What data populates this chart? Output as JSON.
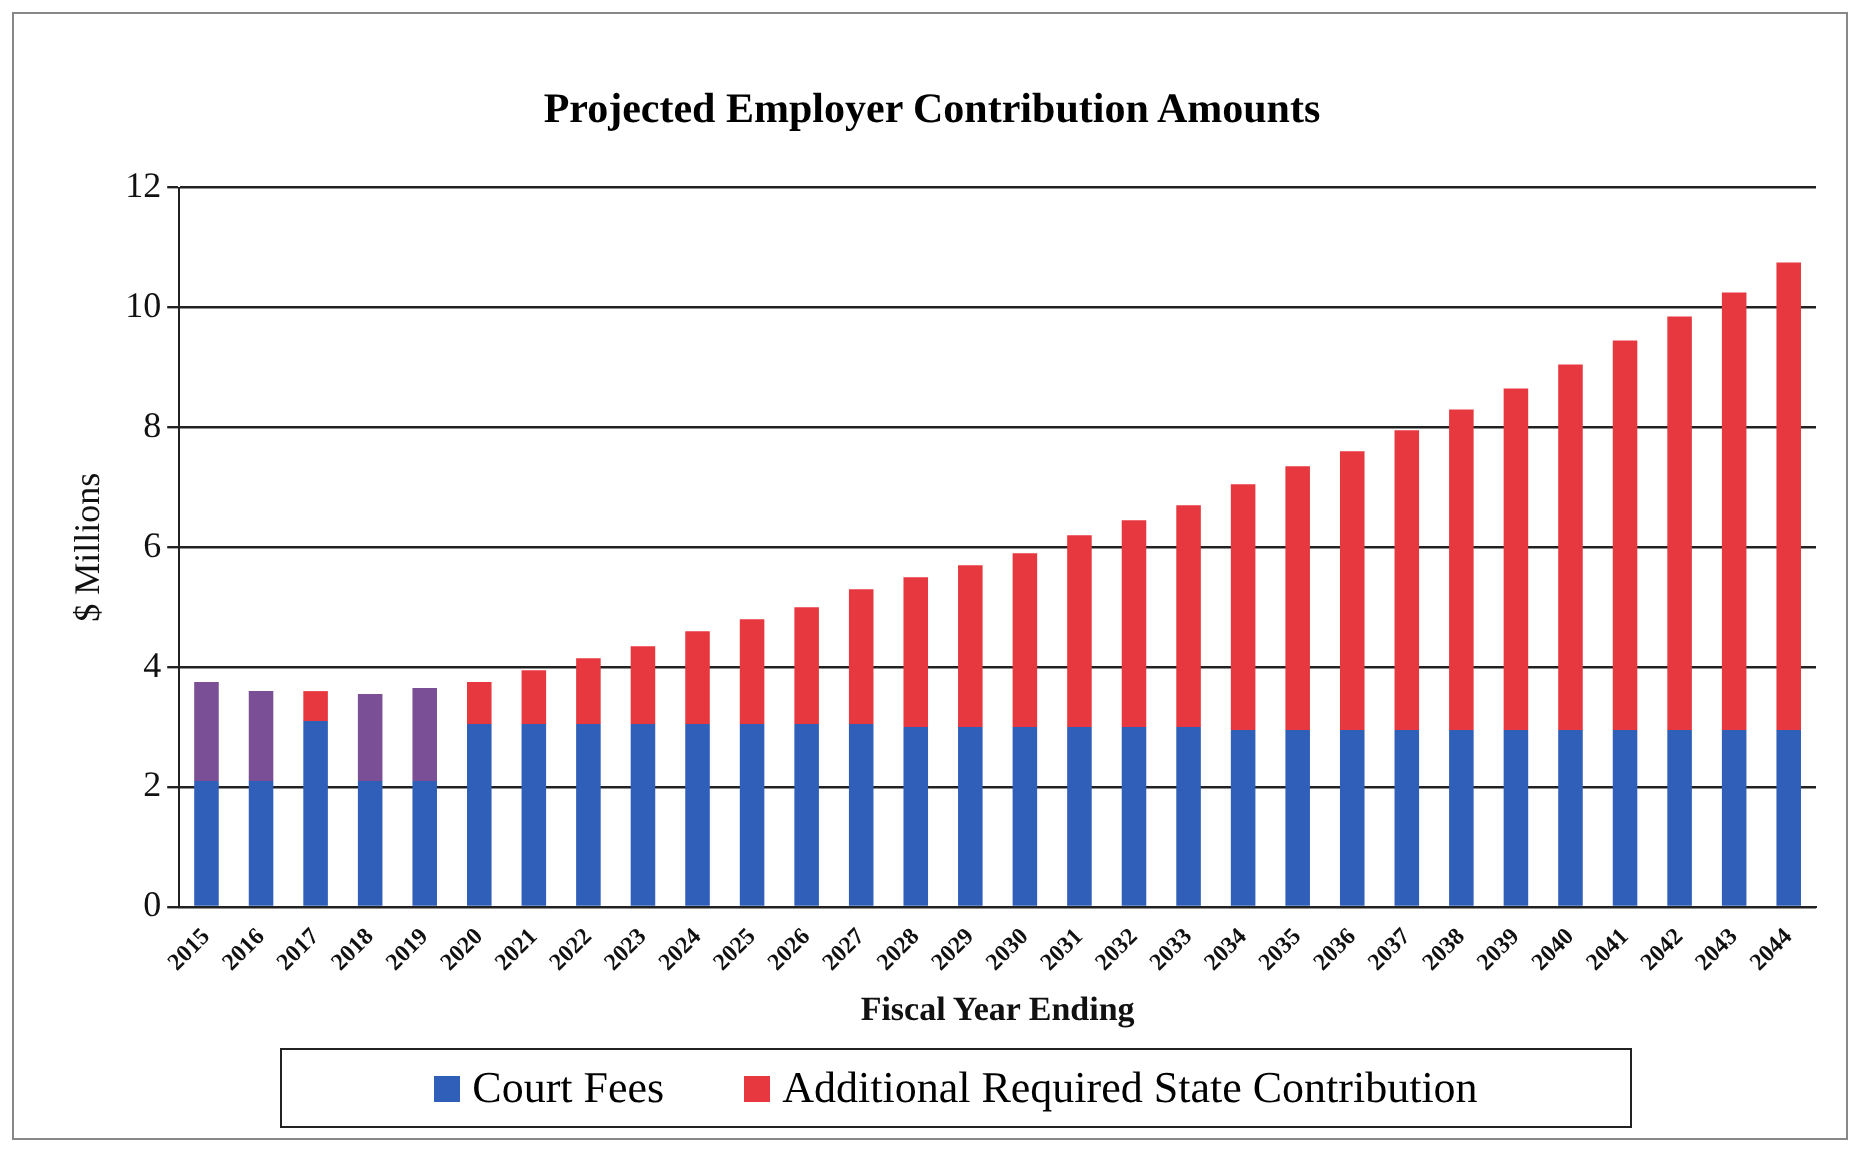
{
  "chart_data": {
    "type": "bar",
    "title": "Projected Employer  Contribution  Amounts",
    "xlabel": "Fiscal Year Ending",
    "ylabel": "$ Millions",
    "categories": [
      "2015",
      "2016",
      "2017",
      "2018",
      "2019",
      "2020",
      "2021",
      "2022",
      "2023",
      "2024",
      "2025",
      "2026",
      "2027",
      "2028",
      "2029",
      "2030",
      "2031",
      "2032",
      "2033",
      "2034",
      "2035",
      "2036",
      "2037",
      "2038",
      "2039",
      "2040",
      "2041",
      "2042",
      "2043",
      "2044"
    ],
    "stacked": true,
    "ylim": [
      0,
      12
    ],
    "yticks": [
      0,
      2,
      4,
      6,
      8,
      10,
      12
    ],
    "grid": "y",
    "legend": "bottom",
    "series": [
      {
        "name": "Court Fees",
        "color": "#2f5fb8",
        "values": [
          2.1,
          2.1,
          3.1,
          2.1,
          2.1,
          3.05,
          3.05,
          3.05,
          3.05,
          3.05,
          3.05,
          3.05,
          3.05,
          3.0,
          3.0,
          3.0,
          3.0,
          3.0,
          3.0,
          2.95,
          2.95,
          2.95,
          2.95,
          2.95,
          2.95,
          2.95,
          2.95,
          2.95,
          2.95,
          2.95
        ]
      },
      {
        "color": "#7a4f96",
        "values": [
          1.65,
          1.5,
          null,
          1.45,
          1.55,
          null,
          null,
          null,
          null,
          null,
          null,
          null,
          null,
          null,
          null,
          null,
          null,
          null,
          null,
          null,
          null,
          null,
          null,
          null,
          null,
          null,
          null,
          null,
          null,
          null
        ]
      },
      {
        "name": "Additional Required State Contribution",
        "color": "#e8383f",
        "values": [
          null,
          null,
          0.5,
          null,
          null,
          0.7,
          0.9,
          1.1,
          1.3,
          1.55,
          1.75,
          1.95,
          2.25,
          2.5,
          2.7,
          2.9,
          3.2,
          3.45,
          3.7,
          4.1,
          4.4,
          4.65,
          5.0,
          5.35,
          5.7,
          6.1,
          6.5,
          6.9,
          7.3,
          7.8
        ]
      }
    ]
  }
}
